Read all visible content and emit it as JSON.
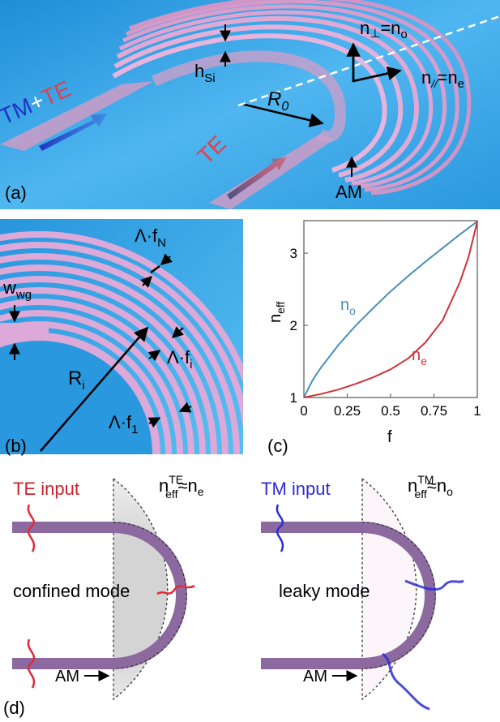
{
  "panel_a": {
    "tag": "(a)",
    "input": {
      "tm": "TM",
      "plus": "+",
      "te": "TE"
    },
    "output_te": "TE",
    "h_si": {
      "base": "h",
      "sub": "Si"
    },
    "n_perp": {
      "base": "n",
      "sub": "⊥",
      "rest": "=n",
      "rest_sub": "o"
    },
    "n_par": {
      "base": "n",
      "sub": "//",
      "rest": "=n",
      "rest_sub": "e"
    },
    "radius": {
      "base": "R",
      "sub": "0"
    },
    "am": "AM",
    "colors": {
      "bg": "#3aa6e8",
      "waveguide": "#d9a6cf",
      "arrow_tm": "#2233c9",
      "arrow_te": "#e0414a"
    }
  },
  "panel_b": {
    "tag": "(b)",
    "w_wg": {
      "base": "w",
      "sub": "wg"
    },
    "lambda_fN": {
      "base": "Λ·f",
      "sub": "N"
    },
    "lambda_fi": {
      "base": "Λ·f",
      "sub": "i"
    },
    "lambda_f1": {
      "base": "Λ·f",
      "sub": "1"
    },
    "r_i": {
      "base": "R",
      "sub": "i"
    }
  },
  "panel_c": {
    "tag": "(c)"
  },
  "chart_data": {
    "type": "line",
    "xlabel": "f",
    "ylabel_base": "n",
    "ylabel_sub": "eff",
    "xlim": [
      0,
      1
    ],
    "ylim": [
      1,
      3.45
    ],
    "xticks": [
      "0",
      "0.25",
      "0.5",
      "0.75",
      "1"
    ],
    "yticks": [
      "1",
      "2",
      "3"
    ],
    "series": [
      {
        "name": "n",
        "name_sub": "o",
        "color": "#4a8fb8",
        "x": [
          0,
          0.05,
          0.1,
          0.2,
          0.3,
          0.4,
          0.5,
          0.6,
          0.7,
          0.8,
          0.9,
          1.0
        ],
        "y": [
          1.0,
          1.24,
          1.42,
          1.73,
          2.0,
          2.24,
          2.47,
          2.68,
          2.88,
          3.07,
          3.26,
          3.44
        ]
      },
      {
        "name": "n",
        "name_sub": "e",
        "color": "#d0323a",
        "x": [
          0,
          0.1,
          0.2,
          0.3,
          0.4,
          0.5,
          0.6,
          0.7,
          0.8,
          0.9,
          0.95,
          1.0
        ],
        "y": [
          1.0,
          1.05,
          1.11,
          1.19,
          1.28,
          1.39,
          1.54,
          1.76,
          2.07,
          2.6,
          2.95,
          3.44
        ]
      }
    ]
  },
  "panel_d": {
    "tag": "(d)",
    "te": {
      "title": "TE input",
      "neff_base": "n",
      "neff_sup": "TE",
      "neff_sub": "eff",
      "approx": "≈n",
      "approx_sub": "e",
      "mode": "confined mode",
      "am": "AM"
    },
    "tm": {
      "title": "TM input",
      "neff_base": "n",
      "neff_sup": "TM",
      "neff_sub": "eff",
      "approx": "≈n",
      "approx_sub": "o",
      "mode": "leaky mode",
      "am": "AM"
    },
    "colors": {
      "waveguide": "#8c6aa0",
      "te": "#e02b36",
      "tm": "#2b2bd8",
      "region_te": "#e8e8e8",
      "region_tm": "#b46ab0"
    }
  }
}
